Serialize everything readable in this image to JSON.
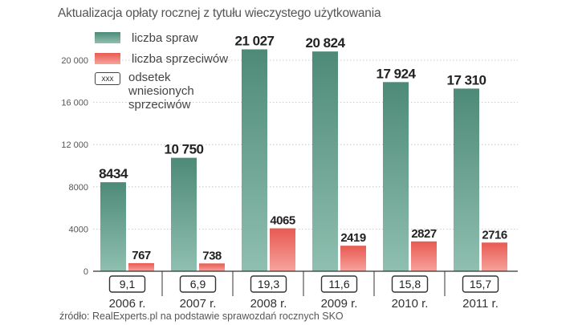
{
  "title": "Aktualizacja opłaty rocznej z tytułu wieczystego użytkowania",
  "source": "źródło: RealExperts.pl na podstawie sprawozdań rocznych SKO",
  "legend": {
    "spraw": "liczba spraw",
    "sprzeciwow": "liczba sprzeciwów",
    "box_text": "xxx",
    "odsetek": "odsetek wniesionych sprzeciwów"
  },
  "colors": {
    "spraw_top": "#4e8a78",
    "spraw_bottom": "#8fbfb0",
    "sprz_top": "#e85a52",
    "sprz_bottom": "#f6a39c",
    "axis": "#333333",
    "grid": "#bbbbbb"
  },
  "chart_data": {
    "type": "bar",
    "title": "Aktualizacja opłaty rocznej z tytułu wieczystego użytkowania",
    "categories": [
      "2006 r.",
      "2007 r.",
      "2008 r.",
      "2009 r.",
      "2010 r.",
      "2011 r."
    ],
    "series": [
      {
        "name": "liczba spraw",
        "values": [
          8434,
          10750,
          21027,
          20824,
          17924,
          17310
        ],
        "labels": [
          "8434",
          "10 750",
          "21 027",
          "20 824",
          "17 924",
          "17 310"
        ]
      },
      {
        "name": "liczba sprzeciwów",
        "values": [
          767,
          738,
          4065,
          2419,
          2827,
          2716
        ],
        "labels": [
          "767",
          "738",
          "4065",
          "2419",
          "2827",
          "2716"
        ]
      }
    ],
    "percent_labels": [
      "9,1",
      "6,9",
      "19,3",
      "11,6",
      "15,8",
      "15,7"
    ],
    "yticks": [
      0,
      4000,
      8000,
      12000,
      16000,
      20000
    ],
    "ytick_labels": [
      "0",
      "4000",
      "8000",
      "12 000",
      "16 000",
      "20 000"
    ],
    "ylim": [
      0,
      22000
    ],
    "grid": true,
    "legend_position": "top-left"
  }
}
